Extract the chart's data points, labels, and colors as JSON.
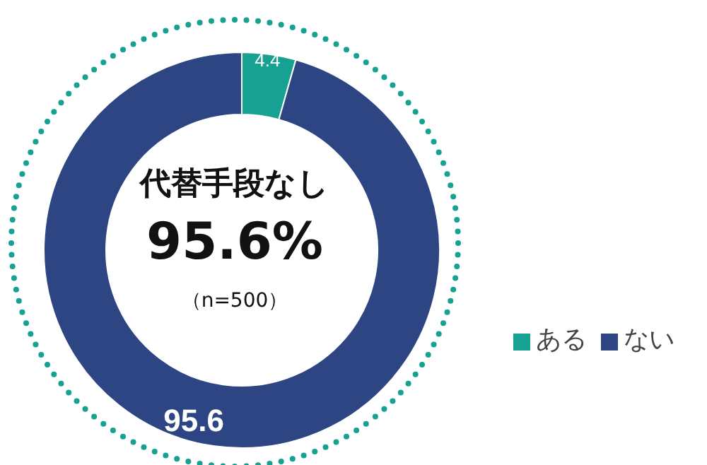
{
  "chart_data": {
    "type": "donut",
    "categories": [
      "ある",
      "ない"
    ],
    "values": [
      4.4,
      95.6
    ],
    "colors": [
      "#17a193",
      "#2d4683"
    ],
    "data_labels": true,
    "legend": "right",
    "annotations": [
      "代替手段なし",
      "95.6%",
      "（n=500）"
    ]
  }
}
